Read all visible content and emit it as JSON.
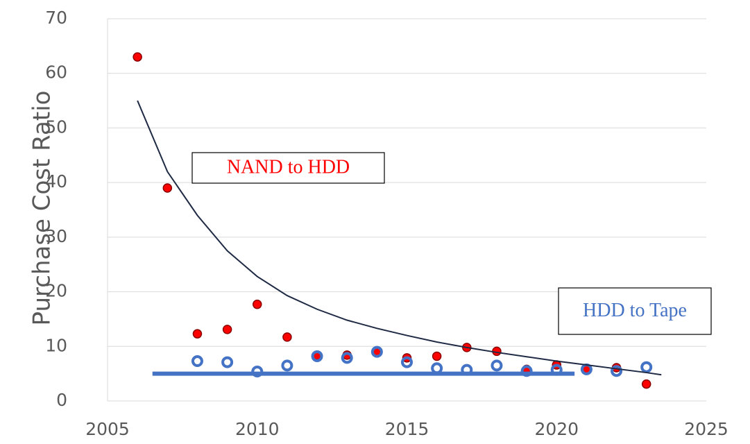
{
  "chart_data": {
    "type": "scatter",
    "y_label": "Purchase Cost Ratio",
    "xlim": [
      2005,
      2025
    ],
    "xticks": [
      2005,
      2010,
      2015,
      2020,
      2025
    ],
    "ylim": [
      0,
      70
    ],
    "yticks": [
      0,
      10,
      20,
      30,
      40,
      50,
      60,
      70
    ],
    "grid": true,
    "series": [
      {
        "name": "NAND to HDD",
        "color": "#ff0000",
        "style": "dot",
        "x": [
          2006,
          2007,
          2008,
          2009,
          2010,
          2011,
          2012,
          2013,
          2014,
          2015,
          2016,
          2017,
          2018,
          2019,
          2020,
          2021,
          2022,
          2023
        ],
        "values": [
          63,
          39,
          12.3,
          13.1,
          17.7,
          11.7,
          8.3,
          8.4,
          9,
          7.9,
          8.2,
          9.8,
          9.1,
          5.8,
          6.6,
          5.7,
          6.1,
          3.1
        ]
      },
      {
        "name": "HDD to Tape",
        "color": "#4472c4",
        "style": "ring",
        "x": [
          2008,
          2009,
          2010,
          2011,
          2012,
          2013,
          2014,
          2015,
          2016,
          2017,
          2018,
          2019,
          2020,
          2021,
          2022,
          2023
        ],
        "values": [
          7.3,
          7.1,
          5.4,
          6.5,
          8.2,
          7.9,
          9.0,
          7.1,
          6.0,
          5.7,
          6.5,
          5.5,
          5.7,
          5.8,
          5.5,
          6.2
        ]
      },
      {
        "color": "#1f2a44",
        "style": "line",
        "x": [
          2006,
          2007,
          2008,
          2009,
          2010,
          2011,
          2012,
          2013,
          2014,
          2015,
          2016,
          2017,
          2018,
          2019,
          2020,
          2021,
          2022,
          2023,
          2023.5
        ],
        "values": [
          55,
          42,
          34,
          27.5,
          22.8,
          19.3,
          16.8,
          14.8,
          13.3,
          12,
          10.8,
          9.8,
          8.9,
          8.1,
          7.3,
          6.6,
          5.9,
          5.2,
          4.8
        ]
      },
      {
        "color": "#4472c4",
        "style": "thick-line",
        "x": [
          2006.5,
          2020.6
        ],
        "values": [
          5,
          5
        ]
      }
    ]
  }
}
